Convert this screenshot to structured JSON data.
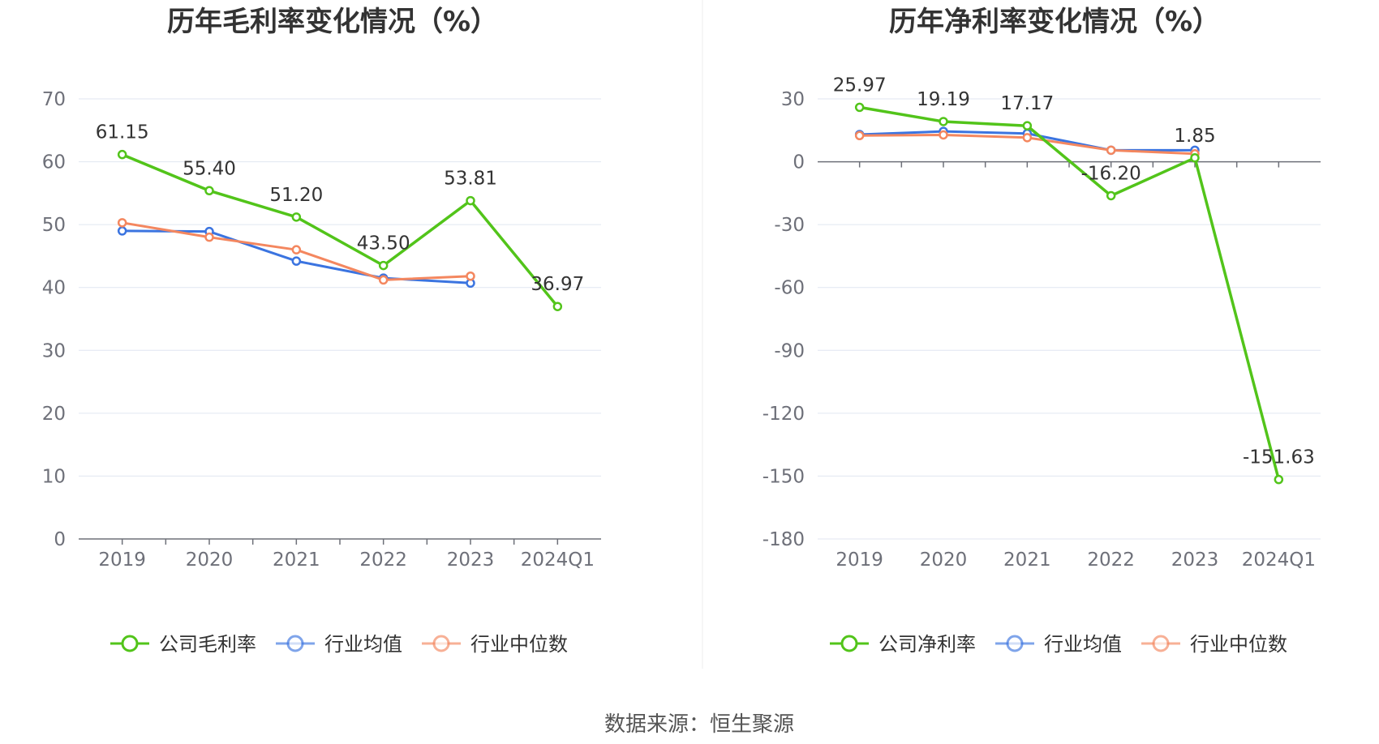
{
  "colors": {
    "company": "#52c41a",
    "industry_avg": "#3b74e0",
    "industry_median": "#f4875f",
    "grid": "#e0e6f1",
    "axis": "#6e7079"
  },
  "chart_data": [
    {
      "type": "line",
      "title": "历年毛利率变化情况（%）",
      "categories": [
        "2019",
        "2020",
        "2021",
        "2022",
        "2023",
        "2024Q1"
      ],
      "ylim": [
        0,
        70
      ],
      "yticks": [
        0,
        10,
        20,
        30,
        40,
        50,
        60,
        70
      ],
      "grid": true,
      "legend_position": "bottom",
      "series": [
        {
          "name": "公司毛利率",
          "role": "company",
          "values": [
            61.15,
            55.4,
            51.2,
            43.5,
            53.81,
            36.97
          ],
          "labels": [
            "61.15",
            "55.40",
            "51.20",
            "43.50",
            "53.81",
            "36.97"
          ]
        },
        {
          "name": "行业均值",
          "role": "industry_avg",
          "values": [
            49.0,
            48.9,
            44.2,
            41.5,
            40.7,
            null
          ]
        },
        {
          "name": "行业中位数",
          "role": "industry_median",
          "values": [
            50.3,
            48.0,
            46.0,
            41.2,
            41.8,
            null
          ]
        }
      ]
    },
    {
      "type": "line",
      "title": "历年净利率变化情况（%）",
      "categories": [
        "2019",
        "2020",
        "2021",
        "2022",
        "2023",
        "2024Q1"
      ],
      "ylim": [
        -180,
        30
      ],
      "yticks": [
        -180,
        -150,
        -120,
        -90,
        -60,
        -30,
        0,
        30
      ],
      "grid": true,
      "legend_position": "bottom",
      "series": [
        {
          "name": "公司净利率",
          "role": "company",
          "values": [
            25.97,
            19.19,
            17.17,
            -16.2,
            1.85,
            -151.63
          ],
          "labels": [
            "25.97",
            "19.19",
            "17.17",
            "-16.20",
            "1.85",
            "-151.63"
          ]
        },
        {
          "name": "行业均值",
          "role": "industry_avg",
          "values": [
            13.0,
            14.5,
            13.5,
            5.5,
            5.5,
            null
          ]
        },
        {
          "name": "行业中位数",
          "role": "industry_median",
          "values": [
            12.5,
            12.8,
            11.5,
            5.5,
            3.8,
            null
          ]
        }
      ]
    }
  ],
  "footer": {
    "source": "数据来源：恒生聚源"
  }
}
